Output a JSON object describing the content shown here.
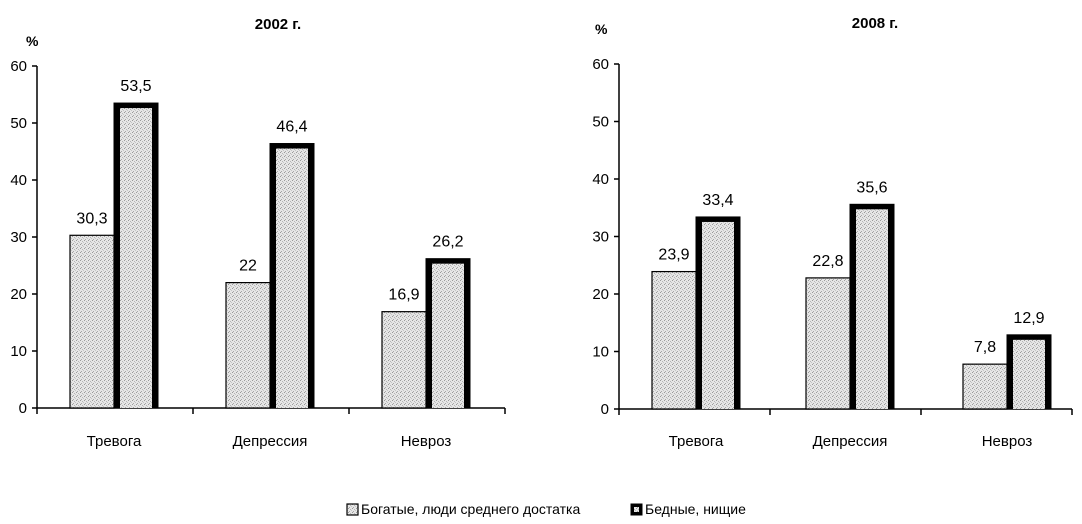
{
  "chart_data": [
    {
      "type": "bar",
      "title": "2002 г.",
      "ylabel": "%",
      "ylim": [
        0,
        60
      ],
      "yticks": [
        0,
        10,
        20,
        30,
        40,
        50,
        60
      ],
      "categories": [
        "Тревога",
        "Депрессия",
        "Невроз"
      ],
      "series": [
        {
          "name": "Богатые, люди среднего достатка",
          "values": [
            30.3,
            22,
            16.9
          ],
          "labels": [
            "30,3",
            "22",
            "16,9"
          ]
        },
        {
          "name": "Бедные, нищие",
          "values": [
            53.5,
            46.4,
            26.2
          ],
          "labels": [
            "53,5",
            "46,4",
            "26,2"
          ]
        }
      ]
    },
    {
      "type": "bar",
      "title": "2008 г.",
      "ylabel": "%",
      "ylim": [
        0,
        60
      ],
      "yticks": [
        0,
        10,
        20,
        30,
        40,
        50,
        60
      ],
      "categories": [
        "Тревога",
        "Депрессия",
        "Невроз"
      ],
      "series": [
        {
          "name": "Богатые, люди среднего достатка",
          "values": [
            23.9,
            22.8,
            7.8
          ],
          "labels": [
            "23,9",
            "22,8",
            "7,8"
          ]
        },
        {
          "name": "Бедные, нищие",
          "values": [
            33.4,
            35.6,
            12.9
          ],
          "labels": [
            "33,4",
            "35,6",
            "12,9"
          ]
        }
      ]
    }
  ],
  "legend": {
    "placement": "bottom-center",
    "items": [
      {
        "label": "Богатые, люди среднего достатка",
        "color": "#e4e4e4"
      },
      {
        "label": "Бедные, нищие",
        "color": "#000000"
      }
    ]
  },
  "colors": {
    "light_series": "#e4e4e4",
    "dark_series": "#000000",
    "axis": "#000000"
  }
}
